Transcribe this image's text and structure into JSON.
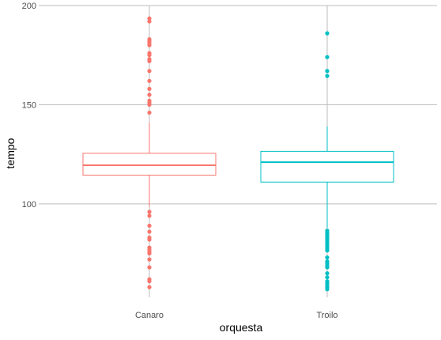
{
  "chart_data": {
    "type": "box",
    "title": "",
    "xlabel": "orquesta",
    "ylabel": "tempo",
    "categories": [
      "Canaro",
      "Troilo"
    ],
    "ylim": [
      54.5,
      200
    ],
    "yticks": [
      100,
      150,
      200
    ],
    "grid": true,
    "legend": "none",
    "colors": {
      "Canaro": "#F8766D",
      "Troilo": "#00BFC4",
      "grid": "#bdbdbd",
      "text": "#4d4d4d"
    },
    "boxes": [
      {
        "name": "Canaro",
        "q1": 114.5,
        "median": 119.5,
        "q3": 125.5,
        "whisker_low": 98.5,
        "whisker_high": 141,
        "outliers": [
          193.5,
          192,
          183,
          182,
          181,
          180,
          176,
          175,
          173,
          172,
          167,
          162,
          158,
          155,
          152,
          151,
          150,
          146,
          96,
          94,
          89,
          86,
          83,
          82,
          78,
          77,
          76,
          75,
          72,
          68,
          62,
          61,
          58
        ]
      },
      {
        "name": "Troilo",
        "q1": 111,
        "median": 121,
        "q3": 126.5,
        "whisker_low": 88,
        "whisker_high": 139,
        "outliers": [
          186,
          174,
          167,
          164.5,
          86.5,
          85.5,
          84.5,
          83.5,
          82.5,
          81.5,
          80.5,
          79.5,
          78.5,
          77.5,
          76.5,
          73,
          71,
          70,
          69,
          68,
          65,
          63,
          61,
          60,
          59,
          58,
          57
        ]
      }
    ]
  }
}
